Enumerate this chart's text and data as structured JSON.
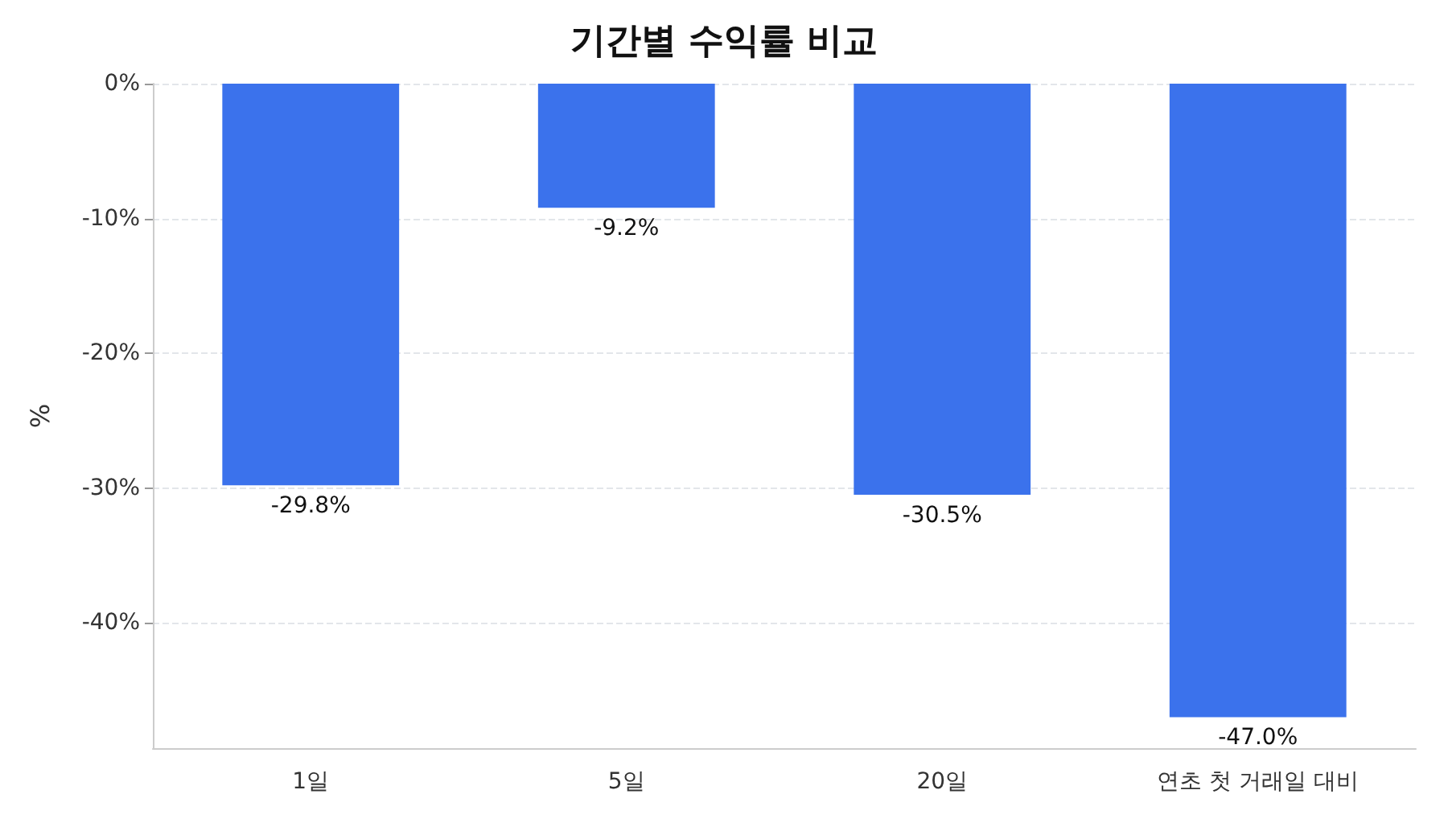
{
  "chart_data": {
    "type": "bar",
    "title": "기간별 수익률 비교",
    "ylabel": "%",
    "categories": [
      "1일",
      "5일",
      "20일",
      "연초 첫 거래일 대비"
    ],
    "values": [
      -29.8,
      -9.2,
      -30.5,
      -47.0
    ],
    "value_labels": [
      "-29.8%",
      "-9.2%",
      "-30.5%",
      "-47.0%"
    ],
    "color": "#3b72ec",
    "ylim": [
      -49.3,
      0
    ],
    "yticks": [
      {
        "value": 0,
        "label": "0%"
      },
      {
        "value": -10,
        "label": "-10%"
      },
      {
        "value": -20,
        "label": "-20%"
      },
      {
        "value": -30,
        "label": "-30%"
      },
      {
        "value": -40,
        "label": "-40%"
      }
    ],
    "grid": "y"
  }
}
